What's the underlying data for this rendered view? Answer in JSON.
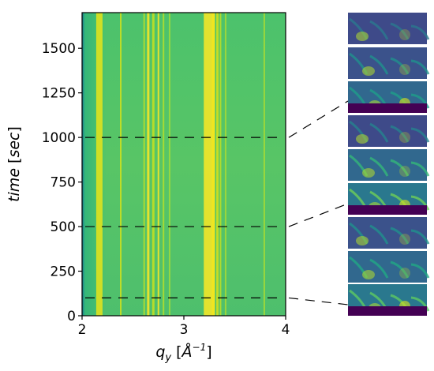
{
  "chart_data": {
    "type": "heatmap",
    "xlabel": "q_y [Å^-1]",
    "ylabel": "time [sec]",
    "xlim": [
      2,
      4
    ],
    "ylim": [
      0,
      1700
    ],
    "xticks": [
      2,
      3,
      4
    ],
    "yticks": [
      0,
      250,
      500,
      750,
      1000,
      1250,
      1500
    ],
    "xtick_labels": [
      "2",
      "3",
      "4"
    ],
    "ytick_labels": [
      "0",
      "250",
      "500",
      "750",
      "1000",
      "1250",
      "1500"
    ],
    "colormap": "viridis",
    "colors": {
      "low": "#440154",
      "mid": "#21918c",
      "high": "#fde725",
      "background_green": "#5ec962"
    },
    "bright_streaks_qy": [
      2.17,
      2.38,
      2.61,
      2.65,
      2.7,
      2.75,
      2.8,
      2.86,
      3.25,
      3.29,
      3.33,
      3.36,
      3.41,
      3.79
    ],
    "marked_times": [
      100,
      500,
      1000
    ],
    "inset_panels": {
      "count": 9,
      "groups": [
        {
          "time": 1000,
          "panels": 3
        },
        {
          "time": 500,
          "panels": 3
        },
        {
          "time": 100,
          "panels": 3
        }
      ]
    }
  }
}
